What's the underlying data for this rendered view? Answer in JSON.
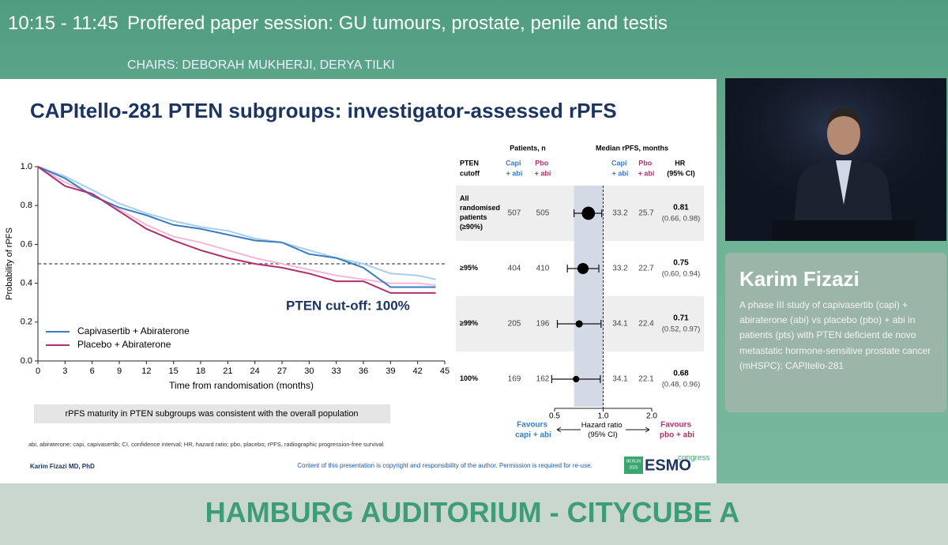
{
  "header": {
    "time": "10:15 - 11:45",
    "session": "Proffered paper session: GU tumours, prostate, penile and testis",
    "chairs": "CHAIRS: DEBORAH MUKHERJI, DERYA TILKI"
  },
  "slide": {
    "title": "CAPItello-281 PTEN subgroups: investigator-assessed rPFS",
    "km_chart": {
      "type": "line",
      "x": [
        0,
        3,
        6,
        9,
        12,
        15,
        18,
        21,
        24,
        27,
        30,
        33,
        36,
        39,
        42,
        44
      ],
      "series": [
        {
          "color": "#a9cdef",
          "values": [
            1.0,
            0.95,
            0.88,
            0.81,
            0.76,
            0.72,
            0.69,
            0.67,
            0.63,
            0.61,
            0.57,
            0.53,
            0.5,
            0.45,
            0.44,
            0.42
          ]
        },
        {
          "color": "#f2b8d6",
          "values": [
            1.0,
            0.92,
            0.86,
            0.78,
            0.7,
            0.64,
            0.61,
            0.57,
            0.53,
            0.5,
            0.47,
            0.44,
            0.42,
            0.4,
            0.4,
            0.39
          ]
        },
        {
          "name": "Capivasertib + Abiraterone",
          "color": "#3a7cc0",
          "values": [
            1.0,
            0.94,
            0.85,
            0.79,
            0.75,
            0.7,
            0.68,
            0.65,
            0.62,
            0.61,
            0.55,
            0.53,
            0.48,
            0.38,
            0.38,
            0.38
          ]
        },
        {
          "name": "Placebo + Abiraterone",
          "color": "#b0306e",
          "values": [
            1.0,
            0.9,
            0.86,
            0.77,
            0.68,
            0.62,
            0.57,
            0.53,
            0.5,
            0.48,
            0.45,
            0.41,
            0.41,
            0.35,
            0.35,
            0.35
          ]
        }
      ],
      "xlim": [
        0,
        45
      ],
      "ylim": [
        0,
        1
      ],
      "xticks": [
        0,
        3,
        6,
        9,
        12,
        15,
        18,
        21,
        24,
        27,
        30,
        33,
        36,
        39,
        42,
        45
      ],
      "yticks": [
        {
          "value": 0,
          "label": "0.0"
        },
        0.2,
        0.4,
        0.6,
        0.8,
        {
          "value": 1,
          "label": "1.0"
        }
      ],
      "xlabel": "Time from randomisation (months)",
      "ylabel": "Probability of rPFS",
      "reference_line": 0.5,
      "annotation": "PTEN cut-off: 100%",
      "legend": "lower-left"
    },
    "forest": {
      "type": "forest",
      "patients_header": "Patients, n",
      "median_header": "Median rPFS, months",
      "cutoff_header": "PTEN cutoff",
      "arm_labels": [
        "Capi + abi",
        "Pbo + abi"
      ],
      "arm_colors": [
        "#3a7cc0",
        "#b0306e"
      ],
      "hr_header": "HR (95% CI)",
      "rows": [
        {
          "cutoff": "All randomised patients (≥90%)",
          "n": [
            507,
            505
          ],
          "median": [
            33.2,
            25.7
          ],
          "hr": 0.81,
          "ci": [
            0.66,
            0.98
          ],
          "ci_label": "(0.66, 0.98)"
        },
        {
          "cutoff": "≥95%",
          "n": [
            404,
            410
          ],
          "median": [
            33.2,
            22.7
          ],
          "hr": 0.75,
          "ci": [
            0.6,
            0.94
          ],
          "ci_label": "(0.60, 0.94)"
        },
        {
          "cutoff": "≥99%",
          "n": [
            205,
            196
          ],
          "median": [
            34.1,
            22.4
          ],
          "hr": 0.71,
          "ci": [
            0.52,
            0.97
          ],
          "ci_label": "(0.52, 0.97)"
        },
        {
          "cutoff": "100%",
          "n": [
            169,
            162
          ],
          "median": [
            34.1,
            22.1
          ],
          "hr": 0.68,
          "ci": [
            0.48,
            0.96
          ],
          "ci_label": "(0.48, 0.96)"
        }
      ],
      "xlim": [
        0.5,
        2.0
      ],
      "xticks": [
        0.5,
        {
          "value": 1,
          "label": "1.0"
        },
        {
          "value": 2,
          "label": "2.0"
        }
      ],
      "log": true,
      "xlabel": "Hazard ratio (95% CI)",
      "favours": [
        "Favours capi + abi",
        "Favours pbo + abi"
      ]
    },
    "note": "rPFS maturity in PTEN subgroups was consistent with the overall population",
    "footnote": "abi, abiraterone; capi, capivasertib; CI, confidence interval; HR, hazard ratio; pbo, placebo; rPFS, radiographic progression-free survival",
    "presenter": "Karim Fizazi MD, PhD",
    "copyright": "Content of this presentation is copyright and responsibility of the author. Permission is required for re-use.",
    "logo": {
      "city": "BERLIN",
      "year": "2025",
      "brand": "ESMO",
      "event": "congress"
    }
  },
  "speaker": {
    "name": "Karim Fizazi",
    "description": "A phase III study of capivasertib (capi) + abiraterone (abi) vs placebo (pbo) + abi in patients (pts) with PTEN deficient de novo metastatic hormone-sensitive prostate cancer (mHSPC): CAPItello-281"
  },
  "venue": "HAMBURG AUDITORIUM - CITYCUBE A"
}
